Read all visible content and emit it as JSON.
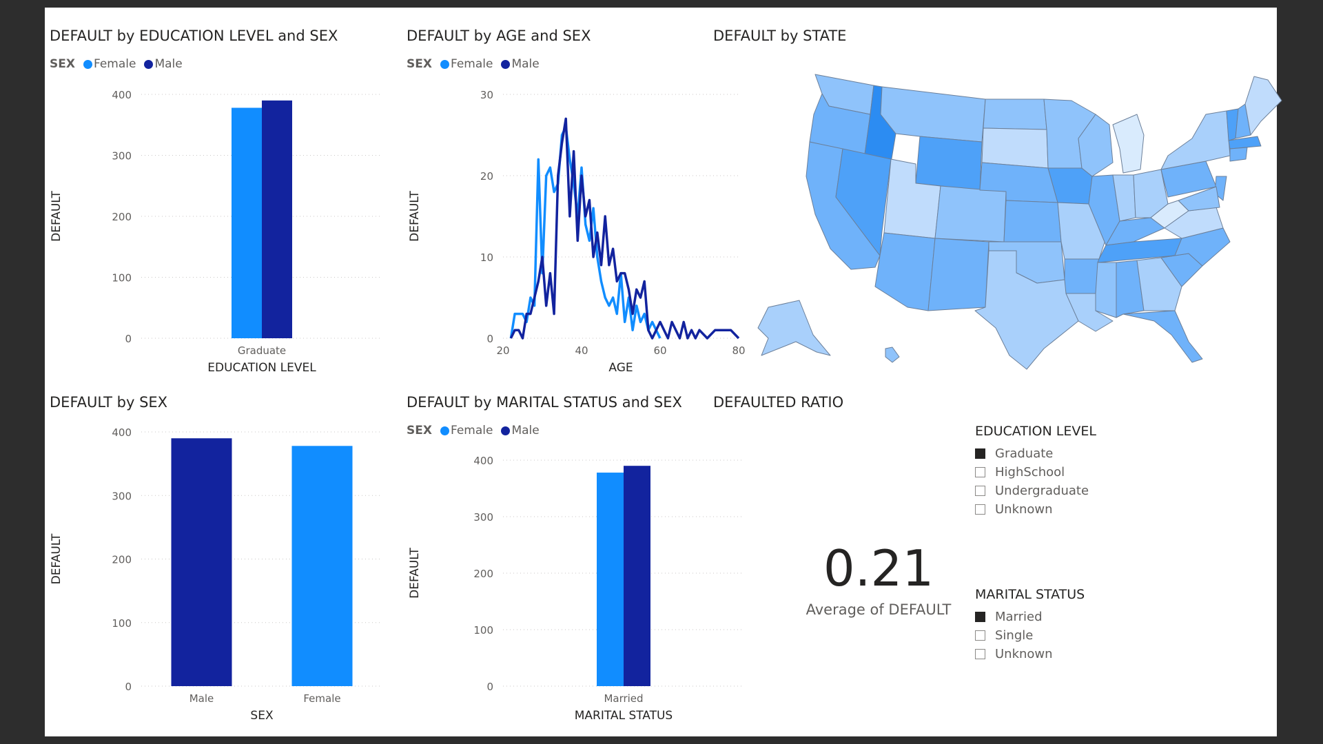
{
  "colors": {
    "female": "#118dff",
    "male": "#12239e",
    "grid": "#c8c6c4",
    "text": "#605e5c"
  },
  "visuals": {
    "edu": {
      "title": "DEFAULT by EDUCATION LEVEL and SEX",
      "legend_title": "SEX"
    },
    "age": {
      "title": "DEFAULT by AGE and SEX",
      "legend_title": "SEX"
    },
    "state": {
      "title": "DEFAULT by STATE"
    },
    "sex": {
      "title": "DEFAULT by SEX"
    },
    "marital": {
      "title": "DEFAULT by MARITAL STATUS and SEX",
      "legend_title": "SEX"
    },
    "ratio": {
      "title": "DEFAULTED RATIO",
      "value": "0.21",
      "label": "Average of DEFAULT"
    }
  },
  "legend": {
    "female": "Female",
    "male": "Male"
  },
  "chart_data": [
    {
      "type": "bar",
      "title": "DEFAULT by EDUCATION LEVEL and SEX",
      "categories": [
        "Graduate"
      ],
      "series": [
        {
          "name": "Female",
          "values": [
            378
          ]
        },
        {
          "name": "Male",
          "values": [
            390
          ]
        }
      ],
      "xlabel": "EDUCATION LEVEL",
      "ylabel": "DEFAULT",
      "ylim": [
        0,
        400
      ],
      "yticks": [
        0,
        100,
        200,
        300,
        400
      ],
      "grid": true,
      "legend": "top-left"
    },
    {
      "type": "line",
      "title": "DEFAULT by AGE and SEX",
      "xlabel": "AGE",
      "ylabel": "DEFAULT",
      "xlim": [
        20,
        80
      ],
      "ylim": [
        0,
        30
      ],
      "xticks": [
        20,
        40,
        60,
        80
      ],
      "yticks": [
        0,
        10,
        20,
        30
      ],
      "grid": true,
      "legend": "top-left",
      "series": [
        {
          "name": "Female",
          "x": [
            22,
            23,
            24,
            25,
            26,
            27,
            28,
            29,
            30,
            31,
            32,
            33,
            34,
            35,
            36,
            37,
            38,
            39,
            40,
            41,
            42,
            43,
            44,
            45,
            46,
            47,
            48,
            49,
            50,
            51,
            52,
            53,
            54,
            55,
            56,
            57,
            58,
            59,
            60
          ],
          "y": [
            0,
            3,
            3,
            3,
            2,
            5,
            4,
            22,
            8,
            20,
            21,
            18,
            19,
            25,
            26,
            22,
            19,
            15,
            21,
            14,
            12,
            16,
            10,
            7,
            5,
            4,
            5,
            3,
            8,
            2,
            5,
            1,
            4,
            2,
            3,
            1,
            2,
            1,
            0
          ]
        },
        {
          "name": "Male",
          "x": [
            22,
            23,
            24,
            25,
            26,
            27,
            28,
            29,
            30,
            31,
            32,
            33,
            34,
            35,
            36,
            37,
            38,
            39,
            40,
            41,
            42,
            43,
            44,
            45,
            46,
            47,
            48,
            49,
            50,
            51,
            52,
            53,
            54,
            55,
            56,
            57,
            58,
            59,
            60,
            61,
            62,
            63,
            64,
            65,
            66,
            67,
            68,
            69,
            70,
            72,
            74,
            76,
            78,
            80
          ],
          "y": [
            0,
            1,
            1,
            0,
            3,
            3,
            5,
            7,
            10,
            4,
            8,
            3,
            20,
            24,
            27,
            15,
            23,
            12,
            20,
            15,
            17,
            10,
            13,
            9,
            15,
            9,
            11,
            7,
            8,
            8,
            6,
            3,
            6,
            5,
            7,
            1,
            0,
            1,
            2,
            1,
            0,
            2,
            1,
            0,
            2,
            0,
            1,
            0,
            1,
            0,
            1,
            1,
            1,
            0
          ]
        }
      ]
    },
    {
      "type": "bar",
      "title": "DEFAULT by SEX",
      "categories": [
        "Male",
        "Female"
      ],
      "values": [
        390,
        378
      ],
      "xlabel": "SEX",
      "ylabel": "DEFAULT",
      "ylim": [
        0,
        400
      ],
      "yticks": [
        0,
        100,
        200,
        300,
        400
      ],
      "grid": true
    },
    {
      "type": "bar",
      "title": "DEFAULT by MARITAL STATUS and SEX",
      "categories": [
        "Married"
      ],
      "series": [
        {
          "name": "Female",
          "values": [
            378
          ]
        },
        {
          "name": "Male",
          "values": [
            390
          ]
        }
      ],
      "xlabel": "MARITAL STATUS",
      "ylabel": "DEFAULT",
      "ylim": [
        0,
        400
      ],
      "yticks": [
        0,
        100,
        200,
        300,
        400
      ],
      "grid": true,
      "legend": "top-left"
    }
  ],
  "slicers": {
    "education": {
      "title": "EDUCATION LEVEL",
      "options": [
        {
          "label": "Graduate",
          "checked": true
        },
        {
          "label": "HighSchool",
          "checked": false
        },
        {
          "label": "Undergraduate",
          "checked": false
        },
        {
          "label": "Unknown",
          "checked": false
        }
      ]
    },
    "marital": {
      "title": "MARITAL STATUS",
      "options": [
        {
          "label": "Married",
          "checked": true
        },
        {
          "label": "Single",
          "checked": false
        },
        {
          "label": "Unknown",
          "checked": false
        }
      ]
    }
  }
}
